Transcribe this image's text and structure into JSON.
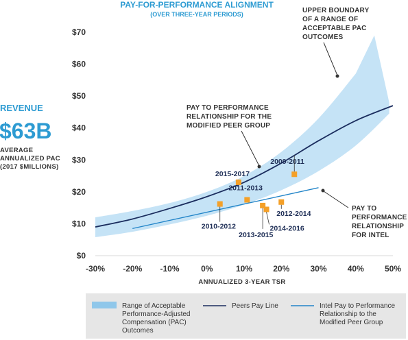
{
  "chart_data": {
    "type": "line",
    "title": "PAY-FOR-PERFORMANCE ALIGNMENT",
    "subtitle": "(OVER THREE-YEAR PERIODS)",
    "xlabel": "ANNUALIZED 3-YEAR TSR",
    "ylabel": [
      "AVERAGE",
      "ANNUALIZED PAC",
      "(2017 $MILLIONS)"
    ],
    "xlim": [
      -30,
      50
    ],
    "ylim": [
      0,
      70
    ],
    "x_ticks": [
      -30,
      -20,
      -10,
      0,
      10,
      20,
      30,
      40,
      50
    ],
    "x_tick_labels": [
      "-30%",
      "-20%",
      "-10%",
      "0%",
      "10%",
      "20%",
      "30%",
      "40%",
      "50%"
    ],
    "y_ticks": [
      0,
      10,
      20,
      30,
      40,
      50,
      60,
      70
    ],
    "y_tick_labels": [
      "$0",
      "$10",
      "$20",
      "$30",
      "$40",
      "$50",
      "$60",
      "$70"
    ],
    "revenue": {
      "label": "REVENUE",
      "value": "$63B"
    },
    "band": {
      "name": "Range of Acceptable Performance-Adjusted Compensation (PAC) Outcomes",
      "color": "#c5e3f6",
      "upper": [
        [
          -30,
          12
        ],
        [
          -20,
          14
        ],
        [
          -10,
          16.5
        ],
        [
          0,
          20
        ],
        [
          10,
          25
        ],
        [
          20,
          32.5
        ],
        [
          30,
          43
        ],
        [
          40,
          57
        ],
        [
          45,
          69
        ],
        [
          49,
          48
        ]
      ],
      "lower": [
        [
          -30,
          5.8
        ],
        [
          -20,
          7.5
        ],
        [
          -10,
          9.8
        ],
        [
          0,
          12.5
        ],
        [
          10,
          16
        ],
        [
          20,
          20.5
        ],
        [
          30,
          26.5
        ],
        [
          40,
          34.5
        ],
        [
          49,
          44.5
        ]
      ]
    },
    "series": [
      {
        "name": "Peers Pay Line",
        "color": "#1b2d5e",
        "points": [
          [
            -30,
            9
          ],
          [
            -20,
            11.5
          ],
          [
            -10,
            14.8
          ],
          [
            0,
            18.5
          ],
          [
            10,
            23
          ],
          [
            20,
            29
          ],
          [
            30,
            36
          ],
          [
            40,
            42.3
          ],
          [
            50,
            47
          ]
        ]
      },
      {
        "name": "Intel Pay to Performance Relationship to the Modified Peer Group",
        "color": "#2184c8",
        "points": [
          [
            -20,
            8.5
          ],
          [
            30,
            21.3
          ]
        ]
      }
    ],
    "scatter": {
      "color": "#f4a028",
      "points": [
        {
          "label": "2009-2011",
          "x": 23.5,
          "y": 25.5
        },
        {
          "label": "2015-2017",
          "x": 8.5,
          "y": 23
        },
        {
          "label": "2011-2013",
          "x": 10.8,
          "y": 17.5
        },
        {
          "label": "2010-2012",
          "x": 3.5,
          "y": 16.2
        },
        {
          "label": "2012-2014",
          "x": 20,
          "y": 16.8
        },
        {
          "label": "2013-2015",
          "x": 15,
          "y": 15.7
        },
        {
          "label": "2014-2016",
          "x": 16,
          "y": 14.5
        }
      ]
    },
    "annotations": [
      {
        "text": [
          "UPPER BOUNDARY",
          "OF A RANGE OF",
          "ACCEPTABLE PAC",
          "OUTCOMES"
        ]
      },
      {
        "text": [
          "PAY TO PERFORMANCE",
          "RELATIONSHIP FOR THE",
          "MODIFIED PEER GROUP"
        ]
      },
      {
        "text": [
          "PAY TO",
          "PERFORMANCE",
          "RELATIONSHIP",
          "FOR INTEL"
        ]
      }
    ],
    "legend": {
      "placement": "bottom",
      "items": [
        {
          "text": [
            "Range of Acceptable",
            "Performance-Adjusted",
            "Compensation (PAC)",
            "Outcomes"
          ]
        },
        {
          "text": [
            "Peers Pay Line"
          ]
        },
        {
          "text": [
            "Intel Pay to Performance",
            "Relationship to the",
            "Modified Peer Group"
          ]
        }
      ]
    }
  }
}
